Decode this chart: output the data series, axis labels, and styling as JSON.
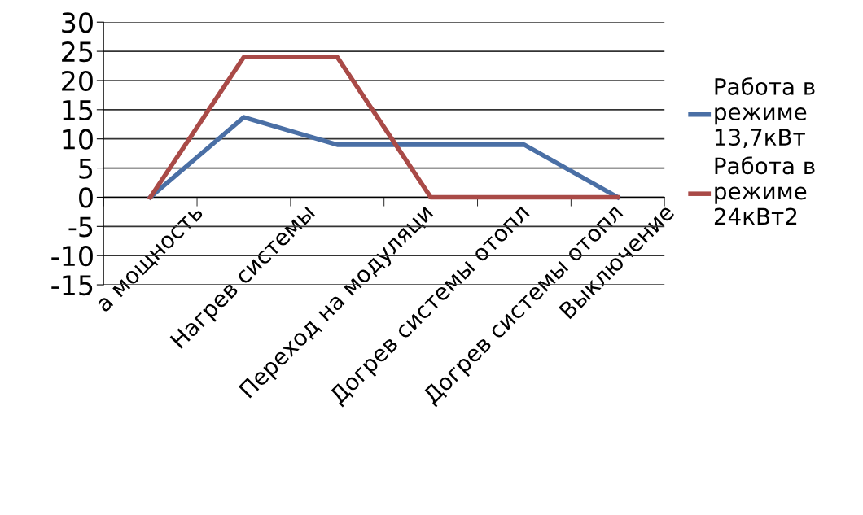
{
  "chart_data": {
    "type": "line",
    "categories": [
      "а мощность",
      "Нагрев системы",
      "Переход на модуляци",
      "Догрев системы отопл",
      "Догрев системы отопл",
      "Выключение"
    ],
    "series": [
      {
        "name": "Работа в режиме 13,7кВт",
        "color": "#4a6fa5",
        "values": [
          0,
          13.7,
          9,
          9,
          9,
          0
        ]
      },
      {
        "name": "Работа в режиме 24кВт2",
        "color": "#a94a47",
        "values": [
          0,
          24,
          24,
          0,
          0,
          0
        ]
      }
    ],
    "ylim": [
      -15,
      30
    ],
    "yticks": [
      -15,
      -10,
      -5,
      0,
      5,
      10,
      15,
      20,
      25,
      30
    ],
    "grid": "y",
    "legend": "right",
    "marker": "none",
    "line_style": "solid"
  }
}
